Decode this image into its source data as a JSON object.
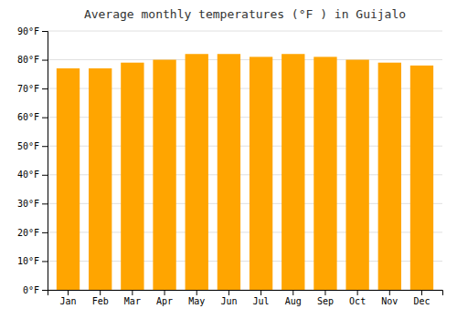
{
  "chart_data": {
    "type": "bar",
    "title": "Average monthly temperatures (°F ) in Guijalo",
    "categories": [
      "Jan",
      "Feb",
      "Mar",
      "Apr",
      "May",
      "Jun",
      "Jul",
      "Aug",
      "Sep",
      "Oct",
      "Nov",
      "Dec"
    ],
    "values": [
      77,
      77,
      79,
      80,
      82,
      82,
      81,
      82,
      81,
      80,
      79,
      78
    ],
    "color": "#FFA500",
    "ylim": [
      0,
      90
    ],
    "yticks": [
      {
        "value": 0,
        "label": "0°F"
      },
      {
        "value": 10,
        "label": "10°F"
      },
      {
        "value": 20,
        "label": "20°F"
      },
      {
        "value": 30,
        "label": "30°F"
      },
      {
        "value": 40,
        "label": "40°F"
      },
      {
        "value": 50,
        "label": "50°F"
      },
      {
        "value": 60,
        "label": "60°F"
      },
      {
        "value": 70,
        "label": "70°F"
      },
      {
        "value": 80,
        "label": "80°F"
      },
      {
        "value": 90,
        "label": "90°F"
      }
    ],
    "grid": true
  }
}
